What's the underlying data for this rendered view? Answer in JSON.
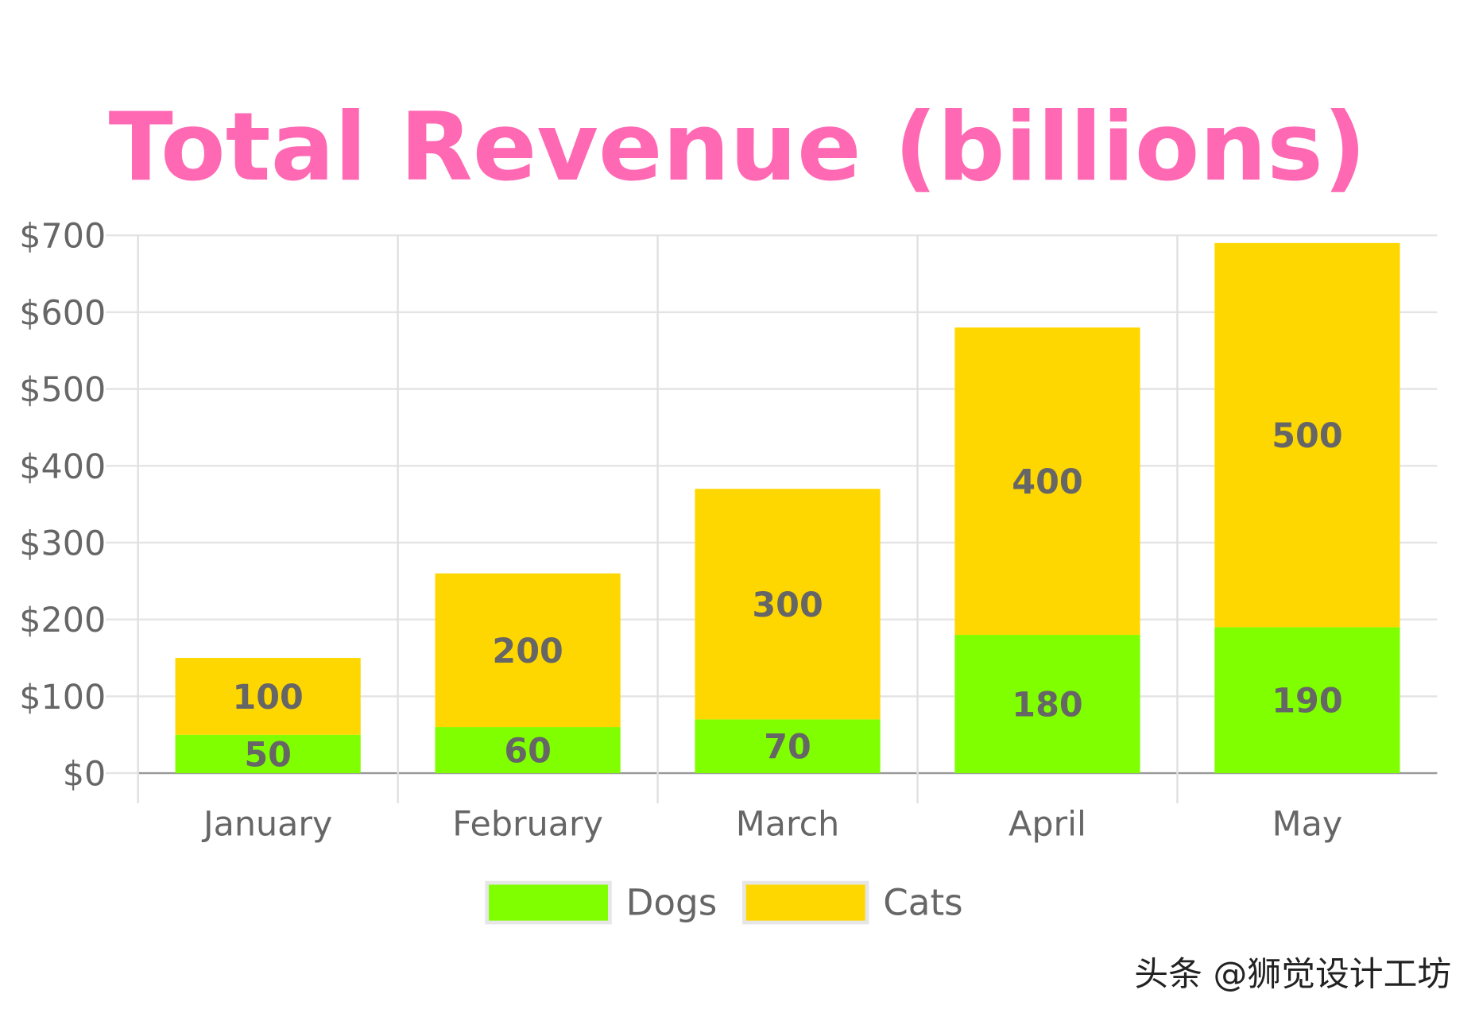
{
  "chart_data": {
    "type": "bar",
    "stacked": true,
    "title": "Total Revenue (billions)",
    "xlabel": "",
    "ylabel": "",
    "categories": [
      "January",
      "February",
      "March",
      "April",
      "May"
    ],
    "series": [
      {
        "name": "Dogs",
        "values": [
          50,
          60,
          70,
          180,
          190
        ],
        "color": "#7FFF00"
      },
      {
        "name": "Cats",
        "values": [
          100,
          200,
          300,
          400,
          500
        ],
        "color": "#FFD700"
      }
    ],
    "ylim": [
      0,
      700
    ],
    "yticks": [
      0,
      100,
      200,
      300,
      400,
      500,
      600,
      700
    ],
    "ytick_labels": [
      "$0",
      "$100",
      "$200",
      "$300",
      "$400",
      "$500",
      "$600",
      "$700"
    ],
    "grid": true,
    "data_labels": true,
    "legend_position": "bottom",
    "title_color": "#FF69B4"
  },
  "watermark": "头条 @狮觉设计工坊"
}
